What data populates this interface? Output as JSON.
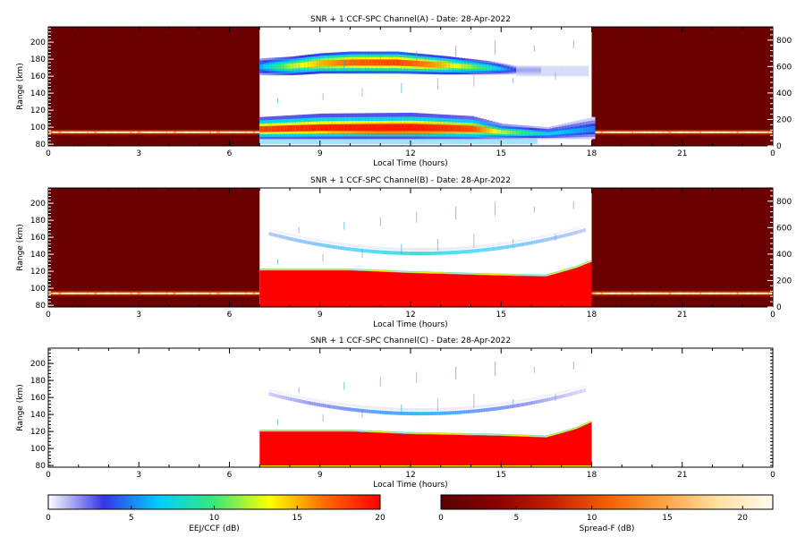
{
  "chart_data": [
    {
      "type": "heatmap",
      "title": "SNR + 1 CCF-SPC Channel(A) - Date: 28-Apr-2022",
      "xlabel": "Local Time (hours)",
      "ylabel": "Range (km)",
      "xlim": [
        0,
        24
      ],
      "ylim": [
        78,
        218
      ],
      "x_ticks": [
        "0",
        "3",
        "6",
        "9",
        "12",
        "15",
        "18",
        "21",
        "0"
      ],
      "y_ticks": [
        "80",
        "100",
        "120",
        "140",
        "160",
        "180",
        "200"
      ],
      "y2_ticks": [
        "0",
        "200",
        "400",
        "600",
        "800"
      ],
      "y2lim": [
        0,
        900
      ],
      "night_shading": true,
      "day_interval": [
        7,
        18
      ],
      "eej_band": {
        "bottom": [
          110,
          88
        ],
        "top": [
          118,
          108
        ]
      },
      "upper_layer": [
        {
          "t": 7.0,
          "center": 171,
          "half_width": 10,
          "db": 6
        },
        {
          "t": 8.0,
          "center": 172,
          "half_width": 11,
          "db": 12
        },
        {
          "t": 9.0,
          "center": 175,
          "half_width": 12,
          "db": 15
        },
        {
          "t": 10.0,
          "center": 176,
          "half_width": 13,
          "db": 17
        },
        {
          "t": 11.5,
          "center": 176,
          "half_width": 13,
          "db": 18
        },
        {
          "t": 13.0,
          "center": 173,
          "half_width": 11,
          "db": 15
        },
        {
          "t": 14.5,
          "center": 170,
          "half_width": 8,
          "db": 9
        },
        {
          "t": 15.5,
          "center": 167,
          "half_width": 5,
          "db": 3
        }
      ],
      "lower_layer": [
        {
          "t": 7.0,
          "top": 112,
          "db": 18
        },
        {
          "t": 9.0,
          "top": 116,
          "db": 19
        },
        {
          "t": 12.0,
          "top": 117,
          "db": 19
        },
        {
          "t": 14.0,
          "top": 113,
          "db": 17
        },
        {
          "t": 15.0,
          "top": 104,
          "db": 12
        },
        {
          "t": 16.5,
          "top": 100,
          "db": 7
        },
        {
          "t": 18.0,
          "top": 112,
          "db": 5
        }
      ]
    },
    {
      "type": "heatmap",
      "title": "SNR + 1 CCF-SPC Channel(B) - Date: 28-Apr-2022",
      "xlabel": "Local Time (hours)",
      "ylabel": "Range (km)",
      "xlim": [
        0,
        24
      ],
      "ylim": [
        78,
        218
      ],
      "x_ticks": [
        "0",
        "3",
        "6",
        "9",
        "12",
        "15",
        "18",
        "21",
        "0"
      ],
      "y_ticks": [
        "80",
        "100",
        "120",
        "140",
        "160",
        "180",
        "200"
      ],
      "y2_ticks": [
        "0",
        "200",
        "400",
        "600",
        "800"
      ],
      "y2lim": [
        0,
        900
      ],
      "night_shading": true,
      "day_interval": [
        7,
        18
      ],
      "eej_band": {
        "bottom": [
          110,
          88
        ],
        "top": [
          118,
          108
        ]
      },
      "red_block_top": [
        {
          "t": 7.0,
          "km": 121
        },
        {
          "t": 10.0,
          "km": 121
        },
        {
          "t": 12.0,
          "km": 118
        },
        {
          "t": 15.0,
          "km": 115
        },
        {
          "t": 16.5,
          "km": 114
        },
        {
          "t": 17.5,
          "km": 124
        },
        {
          "t": 18.0,
          "km": 131
        }
      ],
      "echo_arc": {
        "t0": 12.3,
        "range_min": 141,
        "range_max": 169,
        "t_halfspan": 5.5,
        "db": 4
      }
    },
    {
      "type": "heatmap",
      "title": "SNR + 1 CCF-SPC Channel(C) - Date: 28-Apr-2022",
      "xlabel": "Local Time (hours)",
      "ylabel": "Range (km)",
      "xlim": [
        0,
        24
      ],
      "ylim": [
        78,
        218
      ],
      "x_ticks": [
        "0",
        "3",
        "6",
        "9",
        "12",
        "15",
        "18",
        "21",
        "0"
      ],
      "y_ticks": [
        "80",
        "100",
        "120",
        "140",
        "160",
        "180",
        "200"
      ],
      "night_shading": false,
      "day_interval": [
        7,
        18
      ],
      "red_block_top": [
        {
          "t": 7.0,
          "km": 120
        },
        {
          "t": 10.0,
          "km": 120
        },
        {
          "t": 12.0,
          "km": 117
        },
        {
          "t": 15.0,
          "km": 115
        },
        {
          "t": 16.5,
          "km": 113
        },
        {
          "t": 17.5,
          "km": 123
        },
        {
          "t": 18.0,
          "km": 131
        }
      ],
      "echo_arc": {
        "t0": 12.3,
        "range_min": 141,
        "range_max": 169,
        "t_halfspan": 5.5,
        "db": 2
      }
    }
  ],
  "colorbars": [
    {
      "label": "EEJ/CCF (dB)",
      "range": [
        0,
        20
      ],
      "ticks": [
        "0",
        "5",
        "10",
        "15",
        "20"
      ],
      "colors": [
        "#ffffff",
        "#3535e6",
        "#00cfff",
        "#38e87a",
        "#ffff00",
        "#ff6a00",
        "#ff0000"
      ]
    },
    {
      "label": "Spread-F (dB)",
      "range": [
        0,
        22
      ],
      "ticks": [
        "0",
        "5",
        "10",
        "15",
        "20"
      ],
      "colors": [
        "#5a0000",
        "#8a0000",
        "#c42000",
        "#f06000",
        "#ffa040",
        "#ffe0a0",
        "#fffbf0"
      ]
    }
  ],
  "colors": {
    "night_fill": "#6a0000",
    "block_red": "#ff0000"
  }
}
